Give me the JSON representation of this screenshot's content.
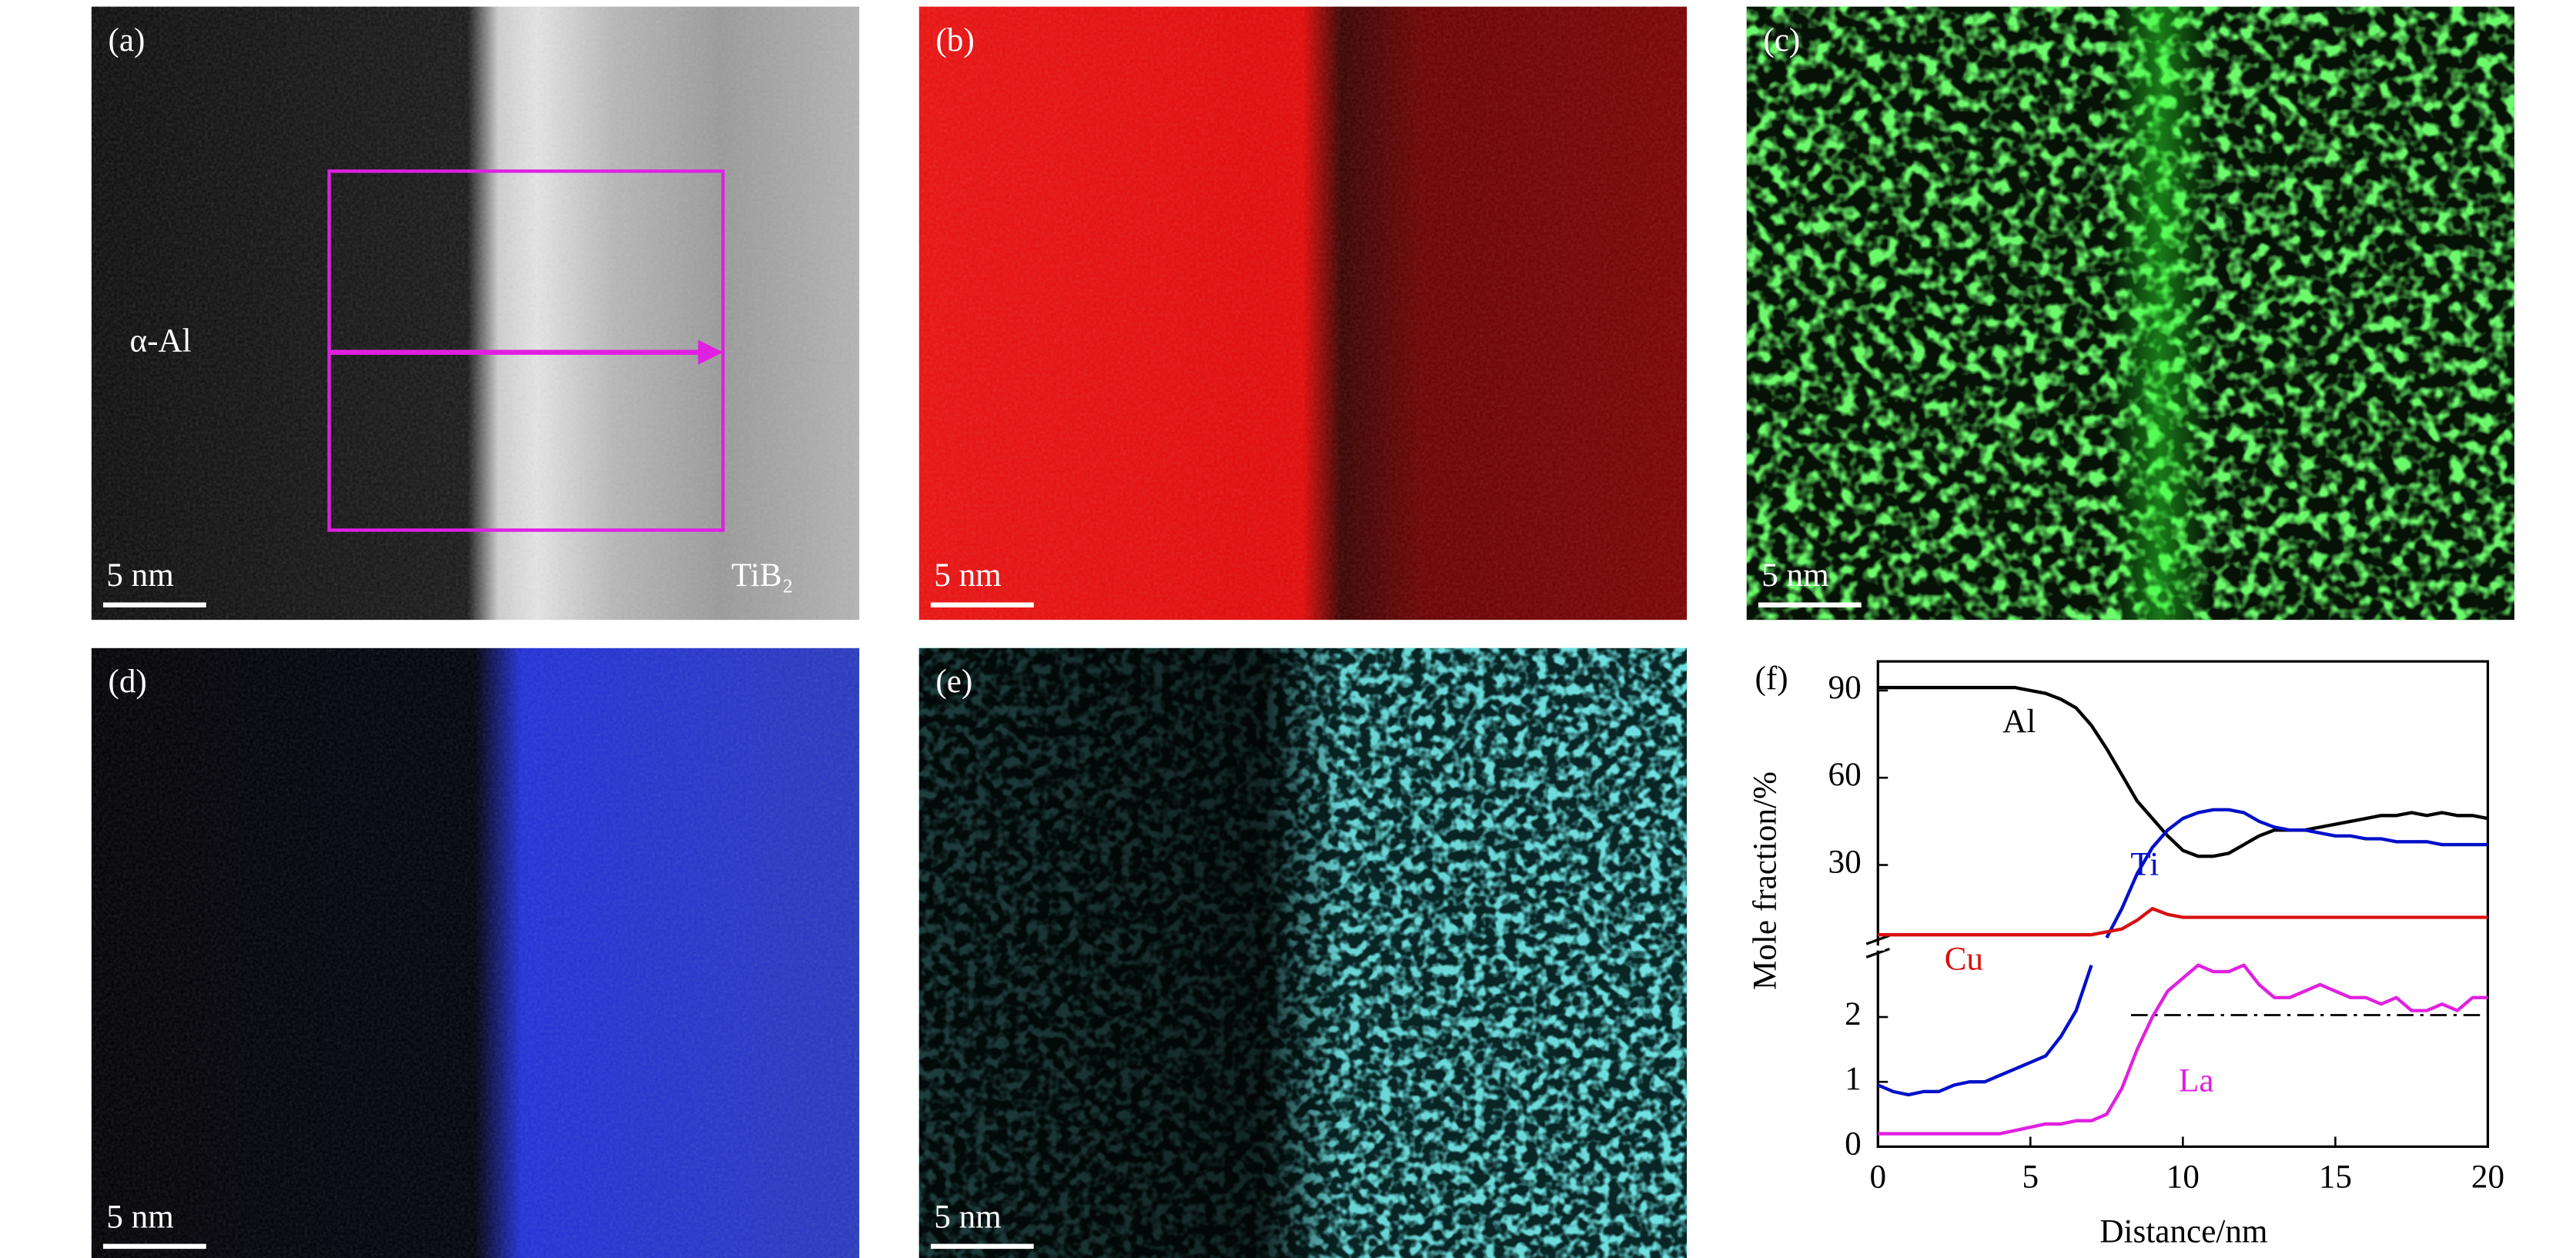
{
  "panels": [
    {
      "label": "(a)",
      "scale_bar": "5 nm",
      "phase_left": "α-Al",
      "phase_right": "TiB₂"
    },
    {
      "label": "(b)",
      "scale_bar": "5 nm"
    },
    {
      "label": "(c)",
      "scale_bar": "5 nm"
    },
    {
      "label": "(d)",
      "scale_bar": "5 nm"
    },
    {
      "label": "(e)",
      "scale_bar": "5 nm"
    }
  ],
  "chart_data": {
    "type": "line",
    "panel_label": "(f)",
    "xlabel": "Distance/nm",
    "ylabel": "Mole fraction/%",
    "xlim": [
      0,
      20
    ],
    "xticks": [
      0,
      5,
      10,
      15,
      20
    ],
    "ylim": [
      0,
      3
    ],
    "yticks": [
      0,
      1,
      2
    ],
    "y2lim": [
      0,
      100
    ],
    "y2ticks": [
      30,
      60,
      90
    ],
    "x": [
      0,
      0.5,
      1,
      1.5,
      2,
      2.5,
      3,
      3.5,
      4,
      4.5,
      5,
      5.5,
      6,
      6.5,
      7,
      7.5,
      8,
      8.5,
      9,
      9.5,
      10,
      10.5,
      11,
      11.5,
      12,
      12.5,
      13,
      13.5,
      14,
      14.5,
      15,
      15.5,
      16,
      16.5,
      17,
      17.5,
      18,
      18.5,
      19,
      19.5,
      20
    ],
    "series": [
      {
        "name": "Al",
        "color": "#000000",
        "axis": "y2",
        "values": [
          91,
          91,
          91,
          91,
          91,
          91,
          91,
          91,
          91,
          91,
          90,
          89,
          87,
          84,
          78,
          70,
          61,
          52,
          46,
          40,
          35,
          33,
          33,
          34,
          37,
          40,
          42,
          42,
          42,
          43,
          44,
          45,
          46,
          47,
          47,
          48,
          47,
          48,
          47,
          47,
          46
        ]
      },
      {
        "name": "Ti",
        "color": "#0010c8",
        "segments": [
          {
            "axis": "y",
            "values": [
              0.95,
              0.85,
              0.8,
              0.85,
              0.85,
              0.95,
              1.0,
              1.0,
              1.1,
              1.2,
              1.3,
              1.4,
              1.7,
              2.1,
              2.8,
              null,
              null,
              null,
              null,
              null,
              null,
              null,
              null,
              null,
              null,
              null,
              null,
              null,
              null,
              null,
              null,
              null,
              null,
              null,
              null,
              null,
              null,
              null,
              null,
              null,
              null
            ]
          },
          {
            "axis": "y2",
            "values": [
              null,
              null,
              null,
              null,
              null,
              null,
              null,
              null,
              null,
              null,
              null,
              null,
              null,
              null,
              null,
              5,
              15,
              27,
              36,
              42,
              46,
              48,
              49,
              49,
              48,
              45,
              43,
              42,
              42,
              41,
              40,
              40,
              39,
              39,
              38,
              38,
              38,
              37,
              37,
              37,
              37
            ]
          }
        ]
      },
      {
        "name": "Cu",
        "color": "#d81010",
        "axis": "y2",
        "values": [
          6,
          6,
          6,
          6,
          6,
          6,
          6,
          6,
          6,
          6,
          6,
          6,
          6,
          6,
          6,
          7,
          8,
          11,
          15,
          13,
          12,
          12,
          12,
          12,
          12,
          12,
          12,
          12,
          12,
          12,
          12,
          12,
          12,
          12,
          12,
          12,
          12,
          12,
          12,
          12,
          12
        ]
      },
      {
        "name": "La",
        "color": "#e020e0",
        "axis": "y",
        "values": [
          0.2,
          0.2,
          0.2,
          0.2,
          0.2,
          0.2,
          0.2,
          0.2,
          0.2,
          0.25,
          0.3,
          0.35,
          0.35,
          0.4,
          0.4,
          0.5,
          0.9,
          1.5,
          2.0,
          2.4,
          2.6,
          2.8,
          2.7,
          2.7,
          2.8,
          2.5,
          2.3,
          2.3,
          2.4,
          2.5,
          2.4,
          2.3,
          2.3,
          2.2,
          2.3,
          2.1,
          2.1,
          2.2,
          2.1,
          2.3,
          2.3
        ]
      }
    ],
    "reference_line": {
      "value": 2.03,
      "x": [
        8.3,
        20
      ],
      "axis": "y"
    }
  }
}
